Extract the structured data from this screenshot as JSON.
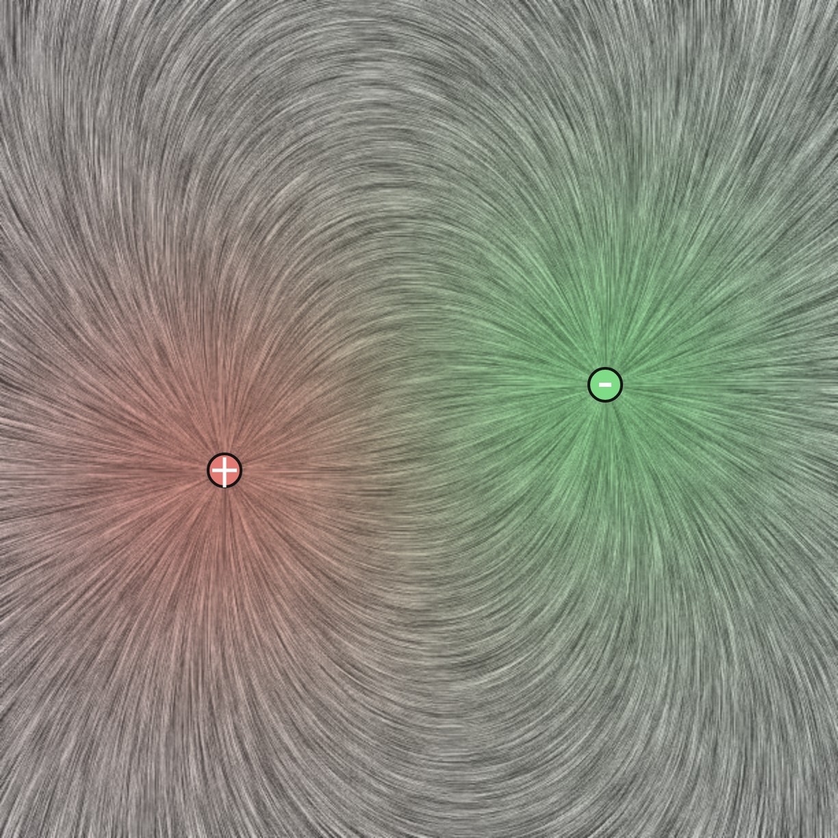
{
  "charges": [
    {
      "name": "positive",
      "sign": "+",
      "magnitude": 1,
      "color": "#e07a72"
    },
    {
      "name": "negative",
      "sign": "-",
      "magnitude": -1,
      "color": "#7fdc86"
    }
  ],
  "field": {
    "style": "line-integral-convolution",
    "base_gray": "#7a7a7a"
  },
  "icons": {
    "positive_charge": "plus-charge-icon",
    "negative_charge": "minus-charge-icon"
  }
}
